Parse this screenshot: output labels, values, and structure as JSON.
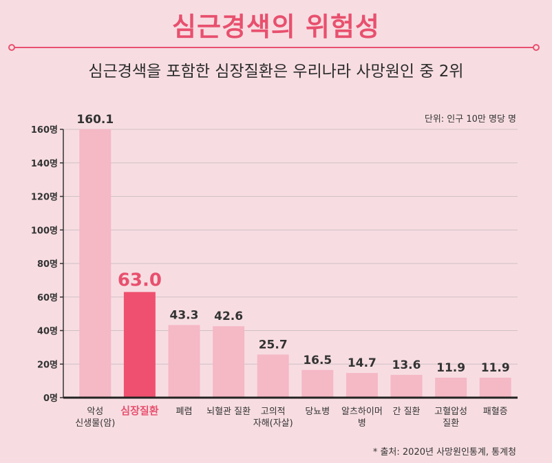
{
  "title": "심근경색의 위험성",
  "subtitle": "심근경색을 포함한 심장질환은 우리나라 사망원인 중 2위",
  "unit_note": "단위: 인구 10만 명당 명",
  "source_note": "* 출처: 2020년 사망원인통계, 통계청",
  "colors": {
    "accent": "#e8506e",
    "bar": "#f5b8c5",
    "bar_highlight": "#f0506f",
    "background": "#f7dde2"
  },
  "chart_data": {
    "type": "bar",
    "title": "심근경색의 위험성",
    "categories": [
      [
        "악성",
        "신생물(암)"
      ],
      [
        "심장질환"
      ],
      [
        "폐렴"
      ],
      [
        "뇌혈관 질환"
      ],
      [
        "고의적",
        "자해(자살)"
      ],
      [
        "당뇨병"
      ],
      [
        "알츠하이머",
        "병"
      ],
      [
        "간 질환"
      ],
      [
        "고혈압성",
        "질환"
      ],
      [
        "패혈증"
      ]
    ],
    "values": [
      160.1,
      63.0,
      43.3,
      42.6,
      25.7,
      16.5,
      14.7,
      13.6,
      11.9,
      11.9
    ],
    "value_labels": [
      "160.1",
      "63.0",
      "43.3",
      "42.6",
      "25.7",
      "16.5",
      "14.7",
      "13.6",
      "11.9",
      "11.9"
    ],
    "highlight_index": 1,
    "y_ticks": [
      "0명",
      "20명",
      "40명",
      "60명",
      "80명",
      "100명",
      "120명",
      "140명",
      "160명"
    ],
    "ylim": [
      0,
      160
    ],
    "grid": true
  }
}
